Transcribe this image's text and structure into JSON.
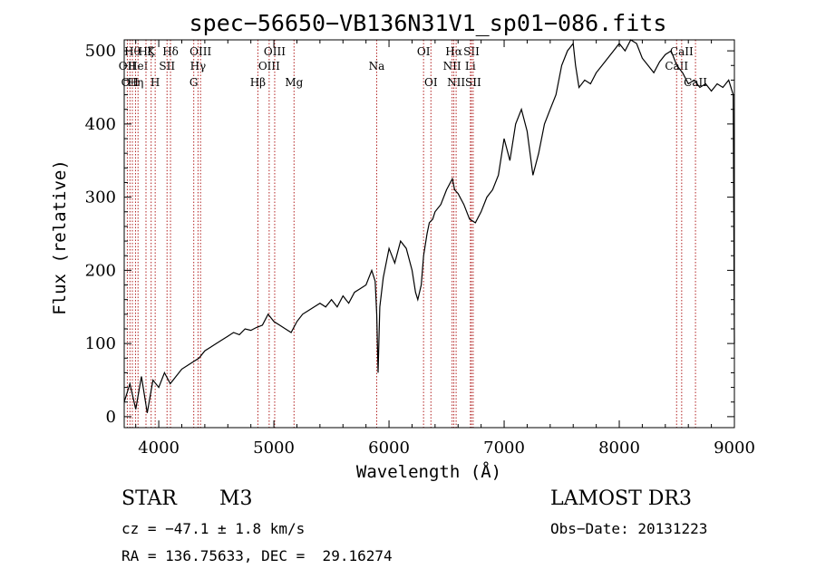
{
  "chart_data": {
    "type": "line",
    "title": "spec−56650−VB136N31V1_sp01−086.fits",
    "xlabel": "Wavelength (Å)",
    "ylabel": "Flux (relative)",
    "xlim": [
      3700,
      9000
    ],
    "ylim": [
      -15,
      515
    ],
    "x_ticks": [
      4000,
      5000,
      6000,
      7000,
      8000,
      9000
    ],
    "y_ticks": [
      0,
      100,
      200,
      300,
      400,
      500
    ],
    "series": [
      {
        "name": "flux",
        "x": [
          3700,
          3750,
          3800,
          3850,
          3900,
          3950,
          4000,
          4050,
          4100,
          4150,
          4200,
          4250,
          4300,
          4350,
          4400,
          4450,
          4500,
          4550,
          4600,
          4650,
          4700,
          4750,
          4800,
          4850,
          4900,
          4950,
          5000,
          5050,
          5100,
          5150,
          5200,
          5250,
          5300,
          5350,
          5400,
          5450,
          5500,
          5550,
          5600,
          5650,
          5700,
          5750,
          5800,
          5850,
          5880,
          5893,
          5905,
          5920,
          5950,
          6000,
          6050,
          6100,
          6150,
          6200,
          6230,
          6250,
          6280,
          6300,
          6330,
          6350,
          6380,
          6400,
          6450,
          6500,
          6550,
          6570,
          6600,
          6650,
          6700,
          6750,
          6800,
          6850,
          6900,
          6950,
          7000,
          7050,
          7100,
          7150,
          7200,
          7250,
          7300,
          7350,
          7400,
          7450,
          7500,
          7550,
          7600,
          7620,
          7650,
          7700,
          7750,
          7800,
          7850,
          7900,
          7950,
          8000,
          8050,
          8100,
          8150,
          8200,
          8250,
          8300,
          8350,
          8400,
          8450,
          8500,
          8550,
          8600,
          8650,
          8700,
          8750,
          8800,
          8850,
          8900,
          8950,
          8990,
          9000
        ],
        "values": [
          20,
          45,
          10,
          55,
          5,
          50,
          40,
          60,
          45,
          55,
          65,
          70,
          75,
          80,
          90,
          95,
          100,
          105,
          110,
          115,
          112,
          120,
          118,
          122,
          125,
          140,
          130,
          125,
          120,
          115,
          130,
          140,
          145,
          150,
          155,
          150,
          160,
          150,
          165,
          155,
          170,
          175,
          180,
          200,
          185,
          140,
          60,
          150,
          190,
          230,
          210,
          240,
          230,
          200,
          170,
          160,
          180,
          220,
          250,
          265,
          270,
          280,
          290,
          310,
          325,
          310,
          305,
          290,
          270,
          265,
          280,
          300,
          310,
          330,
          380,
          350,
          400,
          420,
          390,
          330,
          360,
          400,
          420,
          440,
          480,
          500,
          510,
          480,
          450,
          460,
          455,
          470,
          480,
          490,
          500,
          510,
          500,
          520,
          510,
          490,
          480,
          470,
          485,
          495,
          500,
          480,
          470,
          455,
          460,
          450,
          455,
          445,
          455,
          450,
          460,
          440,
          100
        ],
        "color": "#000000"
      }
    ],
    "spectral_lines": [
      {
        "wavelength": 3727,
        "label": "OII",
        "row": 2
      },
      {
        "wavelength": 3750,
        "label": "OII",
        "row": 3
      },
      {
        "wavelength": 3771,
        "label": "Hθ",
        "row": 1
      },
      {
        "wavelength": 3798,
        "label": "Hη",
        "row": 3
      },
      {
        "wavelength": 3820,
        "label": "HeI",
        "row": 2
      },
      {
        "wavelength": 3889,
        "label": "Hζ",
        "row": 1
      },
      {
        "wavelength": 3934,
        "label": "K",
        "row": 1
      },
      {
        "wavelength": 3969,
        "label": "H",
        "row": 3
      },
      {
        "wavelength": 4072,
        "label": "SII",
        "row": 2
      },
      {
        "wavelength": 4102,
        "label": "Hδ",
        "row": 1
      },
      {
        "wavelength": 4304,
        "label": "G",
        "row": 3
      },
      {
        "wavelength": 4341,
        "label": "Hγ",
        "row": 2
      },
      {
        "wavelength": 4363,
        "label": "OIII",
        "row": 1
      },
      {
        "wavelength": 4861,
        "label": "Hβ",
        "row": 3
      },
      {
        "wavelength": 4959,
        "label": "OIII",
        "row": 2
      },
      {
        "wavelength": 5007,
        "label": "OIII",
        "row": 1
      },
      {
        "wavelength": 5175,
        "label": "Mg",
        "row": 3
      },
      {
        "wavelength": 5893,
        "label": "Na",
        "row": 2
      },
      {
        "wavelength": 6300,
        "label": "OI",
        "row": 1
      },
      {
        "wavelength": 6364,
        "label": "OI",
        "row": 3
      },
      {
        "wavelength": 6548,
        "label": "NII",
        "row": 2
      },
      {
        "wavelength": 6563,
        "label": "Hα",
        "row": 1
      },
      {
        "wavelength": 6583,
        "label": "NII",
        "row": 3
      },
      {
        "wavelength": 6707,
        "label": "Li",
        "row": 2
      },
      {
        "wavelength": 6716,
        "label": "SII",
        "row": 1
      },
      {
        "wavelength": 6731,
        "label": "SII",
        "row": 3
      },
      {
        "wavelength": 8498,
        "label": "CaII",
        "row": 2
      },
      {
        "wavelength": 8542,
        "label": "CaII",
        "row": 1
      },
      {
        "wavelength": 8662,
        "label": "CaII",
        "row": 3
      }
    ]
  },
  "footer": {
    "object_class": "STAR",
    "subclass": "M3",
    "survey": "LAMOST DR3",
    "cz": "cz = −47.1 ± 1.8 km/s",
    "obs_date": "Obs−Date: 20131223",
    "coords": "RA = 136.75633, DEC =  29.16274"
  }
}
